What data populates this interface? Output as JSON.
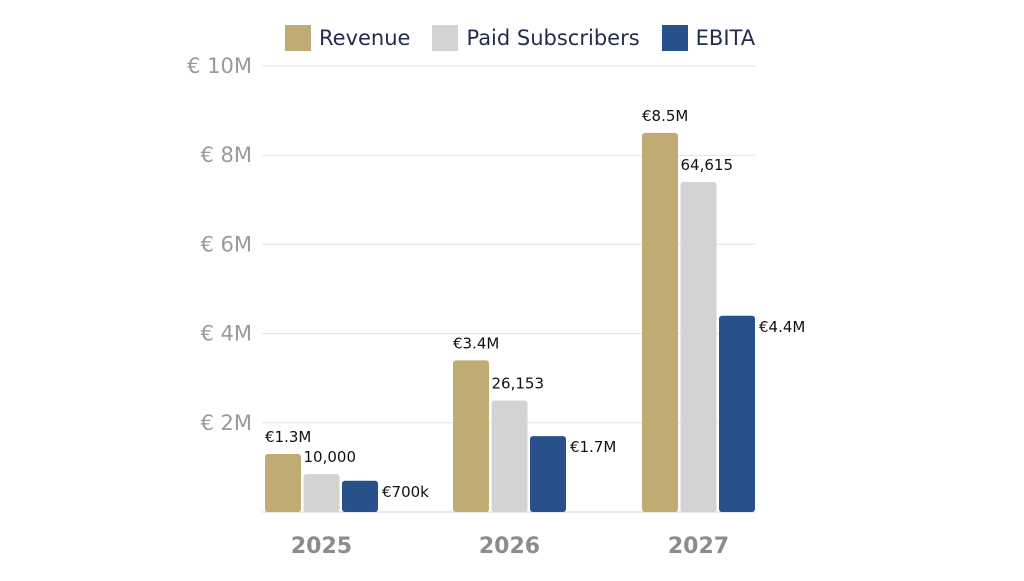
{
  "chart_data": {
    "type": "bar",
    "categories": [
      "2025",
      "2026",
      "2027"
    ],
    "series": [
      {
        "name": "Revenue",
        "color": "#c0ab75",
        "values": [
          1.3,
          3.4,
          8.5
        ],
        "labels": [
          "€1.3M",
          "€3.4M",
          "€8.5M"
        ]
      },
      {
        "name": "Paid Subscribers",
        "color": "#d3d3d3",
        "values": [
          0.85,
          2.5,
          7.4
        ],
        "labels": [
          "10,000",
          "26,153",
          "64,615"
        ]
      },
      {
        "name": "EBITA",
        "color": "#28508a",
        "values": [
          0.7,
          1.7,
          4.4
        ],
        "labels": [
          "€700k",
          "€1.7M",
          "€4.4M"
        ]
      }
    ],
    "yticks": [
      {
        "value": 2,
        "label": "€ 2M"
      },
      {
        "value": 4,
        "label": "€ 4M"
      },
      {
        "value": 6,
        "label": "€ 6M"
      },
      {
        "value": 8,
        "label": "€ 8M"
      },
      {
        "value": 10,
        "label": "€ 10M"
      }
    ],
    "ylim": [
      0,
      10
    ],
    "grid": true,
    "legend_position": "top"
  }
}
